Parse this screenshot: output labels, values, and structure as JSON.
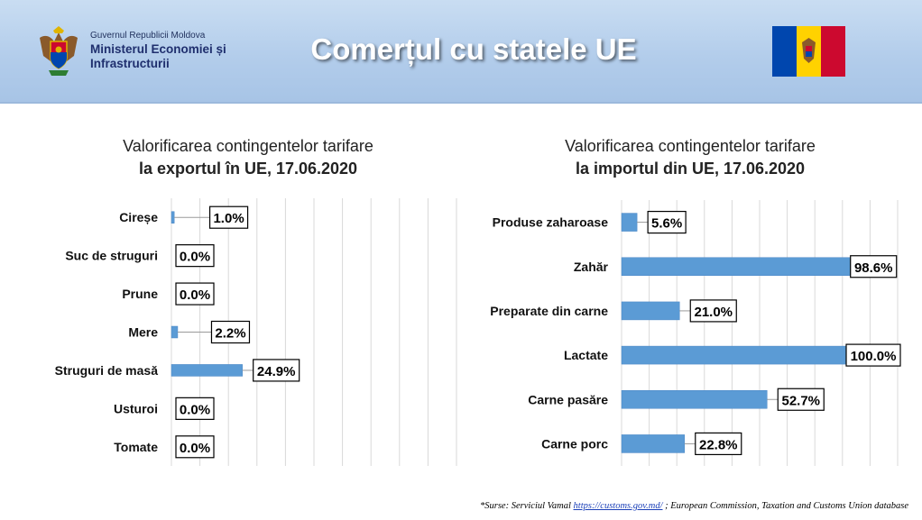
{
  "header": {
    "government": "Guvernul Republicii Moldova",
    "ministry_line1": "Ministerul Economiei și",
    "ministry_line2": "Infrastructurii",
    "title": "Comerțul cu statele UE",
    "crest_icon": "moldova-coat-of-arms-icon",
    "flag_icon": "moldova-flag-icon",
    "flag_colors": [
      "#0046ae",
      "#ffd200",
      "#cc092f"
    ]
  },
  "chart_data": [
    {
      "type": "bar",
      "orientation": "horizontal",
      "title_line1": "Valorificarea contingentelor tarifare",
      "title_line2": "la exportul în UE, 17.06.2020",
      "categories": [
        "Cireșe",
        "Suc de struguri",
        "Prune",
        "Mere",
        "Struguri de masă",
        "Usturoi",
        "Tomate"
      ],
      "values": [
        1.0,
        0.0,
        0.0,
        2.2,
        24.9,
        0.0,
        0.0
      ],
      "labels": [
        "1.0%",
        "0.0%",
        "0.0%",
        "2.2%",
        "24.9%",
        "0.0%",
        "0.0%"
      ],
      "xlim": [
        0,
        100
      ],
      "grid": true,
      "bar_color": "#5b9bd5"
    },
    {
      "type": "bar",
      "orientation": "horizontal",
      "title_line1": "Valorificarea contingentelor tarifare",
      "title_line2": "la importul din UE, 17.06.2020",
      "categories": [
        "Produse zaharoase",
        "Zahăr",
        "Preparate din carne",
        "Lactate",
        "Carne pasăre",
        "Carne porc"
      ],
      "values": [
        5.6,
        98.6,
        21.0,
        100.0,
        52.7,
        22.8
      ],
      "labels": [
        "5.6%",
        "98.6%",
        "21.0%",
        "100.0%",
        "52.7%",
        "22.8%"
      ],
      "xlim": [
        0,
        100
      ],
      "grid": true,
      "bar_color": "#5b9bd5"
    }
  ],
  "footer": {
    "source_prefix": "*Surse: Serviciul Vamal ",
    "source_link": "https://customs.gov.md/",
    "source_suffix": " ; European Commission, Taxation and Customs Union database"
  }
}
